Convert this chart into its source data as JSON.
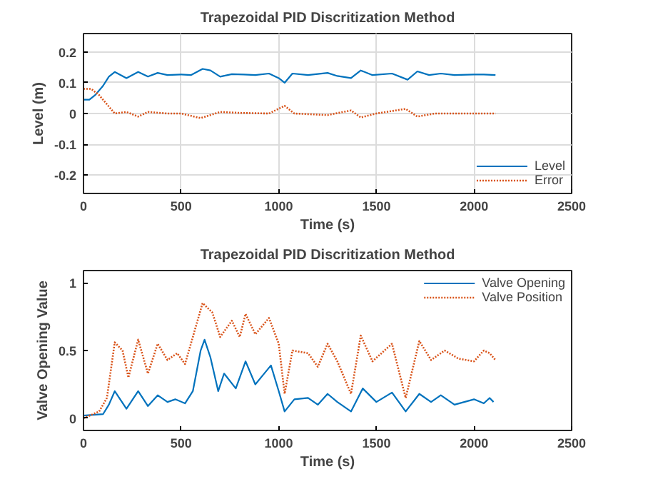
{
  "chart_data": [
    {
      "type": "line",
      "title": "Trapezoidal PID Discritization Method",
      "xlabel": "Time (s)",
      "ylabel": "Level (m)",
      "xlim": [
        0,
        2500
      ],
      "xticks": [
        0,
        500,
        1000,
        1500,
        2000,
        2500
      ],
      "ylim": [
        -0.26,
        0.26
      ],
      "yticks": [
        -0.2,
        -0.1,
        0,
        0.1,
        0.2
      ],
      "grid": true,
      "legend": "bottom right",
      "series": [
        {
          "name": "Level",
          "color": "#0072bd",
          "line_style": "solid",
          "x": [
            0,
            30,
            60,
            100,
            130,
            160,
            220,
            280,
            330,
            380,
            430,
            500,
            550,
            610,
            650,
            700,
            760,
            820,
            880,
            950,
            1000,
            1030,
            1070,
            1150,
            1250,
            1300,
            1370,
            1420,
            1480,
            1580,
            1660,
            1710,
            1770,
            1830,
            1900,
            2000,
            2050,
            2110
          ],
          "values": [
            0.045,
            0.045,
            0.06,
            0.09,
            0.12,
            0.135,
            0.115,
            0.135,
            0.12,
            0.132,
            0.125,
            0.127,
            0.125,
            0.145,
            0.14,
            0.12,
            0.128,
            0.127,
            0.125,
            0.13,
            0.115,
            0.1,
            0.13,
            0.125,
            0.132,
            0.122,
            0.115,
            0.14,
            0.125,
            0.13,
            0.11,
            0.137,
            0.125,
            0.13,
            0.125,
            0.127,
            0.127,
            0.125
          ]
        },
        {
          "name": "Error",
          "color": "#d95319",
          "line_style": "dotted",
          "x": [
            0,
            40,
            80,
            120,
            160,
            220,
            280,
            330,
            430,
            500,
            600,
            700,
            800,
            950,
            1030,
            1080,
            1250,
            1370,
            1420,
            1500,
            1650,
            1710,
            1800,
            2000,
            2110
          ],
          "values": [
            0.08,
            0.08,
            0.06,
            0.03,
            0.0,
            0.005,
            -0.01,
            0.005,
            0.0,
            0.0,
            -0.015,
            0.005,
            0.002,
            0.0,
            0.025,
            0.0,
            -0.005,
            0.01,
            -0.013,
            0.0,
            0.015,
            -0.01,
            0.0,
            0.0,
            0.0
          ]
        }
      ]
    },
    {
      "type": "line",
      "title": "Trapezoidal PID Discritization Method",
      "xlabel": "Time (s)",
      "ylabel": "Valve Opening Value",
      "xlim": [
        0,
        2500
      ],
      "xticks": [
        0,
        500,
        1000,
        1500,
        2000,
        2500
      ],
      "ylim": [
        -0.09,
        1.09
      ],
      "yticks": [
        0,
        0.5,
        1
      ],
      "grid": false,
      "legend": "top right",
      "series": [
        {
          "name": "Valve Opening",
          "color": "#0072bd",
          "line_style": "solid",
          "x": [
            0,
            100,
            130,
            160,
            220,
            280,
            330,
            380,
            430,
            470,
            520,
            560,
            600,
            620,
            650,
            690,
            720,
            780,
            830,
            880,
            920,
            960,
            1000,
            1030,
            1080,
            1150,
            1200,
            1250,
            1300,
            1370,
            1430,
            1500,
            1580,
            1650,
            1720,
            1780,
            1830,
            1900,
            1950,
            2000,
            2050,
            2080,
            2100
          ],
          "values": [
            0.02,
            0.03,
            0.1,
            0.2,
            0.07,
            0.2,
            0.09,
            0.17,
            0.12,
            0.14,
            0.11,
            0.2,
            0.5,
            0.58,
            0.45,
            0.2,
            0.33,
            0.22,
            0.42,
            0.25,
            0.32,
            0.39,
            0.2,
            0.05,
            0.14,
            0.15,
            0.1,
            0.18,
            0.12,
            0.05,
            0.22,
            0.12,
            0.19,
            0.05,
            0.18,
            0.12,
            0.17,
            0.1,
            0.12,
            0.14,
            0.11,
            0.15,
            0.12
          ]
        },
        {
          "name": "Valve Position",
          "color": "#d95319",
          "line_style": "dotted",
          "x": [
            0,
            80,
            120,
            160,
            200,
            230,
            280,
            330,
            380,
            430,
            480,
            520,
            560,
            610,
            660,
            700,
            760,
            800,
            830,
            880,
            950,
            1000,
            1030,
            1070,
            1150,
            1200,
            1250,
            1300,
            1370,
            1420,
            1480,
            1580,
            1650,
            1720,
            1780,
            1850,
            1920,
            2000,
            2050,
            2080,
            2110
          ],
          "values": [
            0.0,
            0.05,
            0.15,
            0.56,
            0.5,
            0.3,
            0.58,
            0.33,
            0.55,
            0.43,
            0.48,
            0.4,
            0.6,
            0.85,
            0.78,
            0.6,
            0.72,
            0.6,
            0.77,
            0.62,
            0.74,
            0.55,
            0.18,
            0.5,
            0.48,
            0.38,
            0.55,
            0.42,
            0.18,
            0.61,
            0.42,
            0.55,
            0.15,
            0.57,
            0.43,
            0.5,
            0.44,
            0.42,
            0.5,
            0.48,
            0.43
          ]
        }
      ]
    }
  ]
}
